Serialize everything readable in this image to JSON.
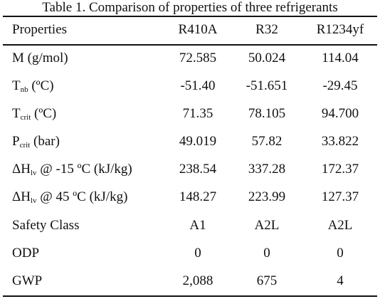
{
  "caption": "Table 1. Comparison of properties of three refrigerants",
  "headers": [
    "Properties",
    "R410A",
    "R32",
    "R1234yf"
  ],
  "rows": [
    {
      "label": {
        "main": "M (g/mol)",
        "sub": "",
        "suffix": ""
      },
      "values": [
        "72.585",
        "50.024",
        "114.04"
      ]
    },
    {
      "label": {
        "main": "T",
        "sub": "nb",
        "suffix": " (ºC)"
      },
      "values": [
        "-51.40",
        "-51.651",
        "-29.45"
      ]
    },
    {
      "label": {
        "main": "T",
        "sub": "crit",
        "suffix": " (ºC)"
      },
      "values": [
        "71.35",
        "78.105",
        "94.700"
      ]
    },
    {
      "label": {
        "main": "P",
        "sub": "crit",
        "suffix": " (bar)"
      },
      "values": [
        "49.019",
        "57.82",
        "33.822"
      ]
    },
    {
      "label": {
        "main": "ΔH",
        "sub": "lv",
        "suffix": " @ -15 ºC (kJ/kg)"
      },
      "values": [
        "238.54",
        "337.28",
        "172.37"
      ]
    },
    {
      "label": {
        "main": "ΔH",
        "sub": "lv",
        "suffix": " @ 45 ºC (kJ/kg)"
      },
      "values": [
        "148.27",
        "223.99",
        "127.37"
      ]
    },
    {
      "label": {
        "main": "Safety Class",
        "sub": "",
        "suffix": ""
      },
      "values": [
        "A1",
        "A2L",
        "A2L"
      ]
    },
    {
      "label": {
        "main": "ODP",
        "sub": "",
        "suffix": ""
      },
      "values": [
        "0",
        "0",
        "0"
      ]
    },
    {
      "label": {
        "main": "GWP",
        "sub": "",
        "suffix": ""
      },
      "values": [
        "2,088",
        "675",
        "4"
      ]
    }
  ]
}
